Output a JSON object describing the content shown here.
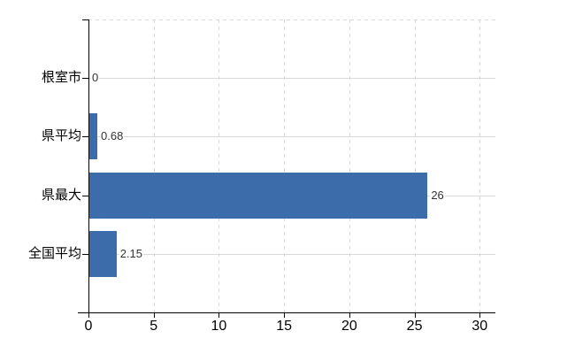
{
  "chart_data": {
    "type": "bar",
    "orientation": "horizontal",
    "title": "",
    "xlabel": "",
    "ylabel": "",
    "categories": [
      "根室市",
      "県平均",
      "県最大",
      "全国平均"
    ],
    "values": [
      0,
      0.68,
      26,
      2.15
    ],
    "value_labels": [
      "0",
      "0.68",
      "26",
      "2.15"
    ],
    "xticks": [
      0,
      5,
      10,
      15,
      20,
      25,
      30
    ],
    "xtick_labels": [
      "0",
      "5",
      "10",
      "15",
      "20",
      "25",
      "30"
    ],
    "xlim": [
      0,
      31.2
    ],
    "grid": true,
    "legend": false,
    "colors": {
      "bar": "#3d6cab",
      "gridline": "#d9d9d9",
      "axis": "#000000",
      "category_label": "#000000",
      "tick_label": "#000000",
      "value_label": "#333333",
      "background": "#ffffff"
    }
  }
}
